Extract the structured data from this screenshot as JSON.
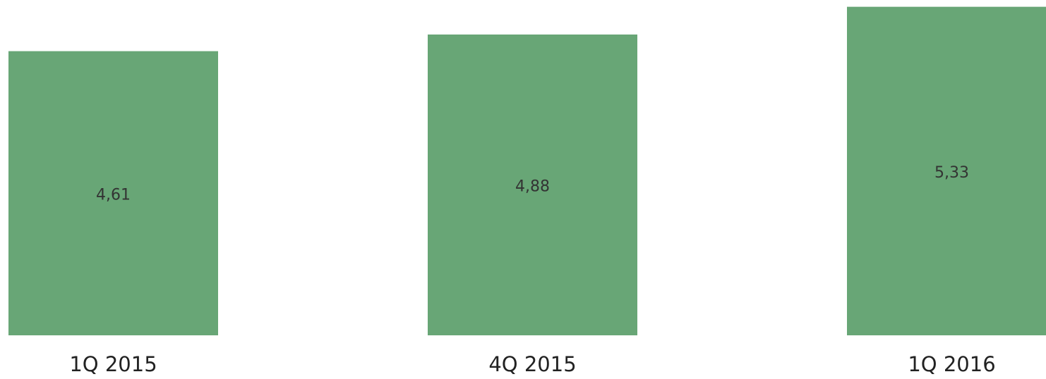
{
  "chart_data": {
    "type": "bar",
    "categories": [
      "1Q 2015",
      "4Q 2015",
      "1Q 2016"
    ],
    "values": [
      4.61,
      4.88,
      5.33
    ],
    "value_labels": [
      "4,61",
      "4,88",
      "5,33"
    ],
    "color": "#68a676",
    "ylim": [
      0,
      5.44
    ]
  }
}
